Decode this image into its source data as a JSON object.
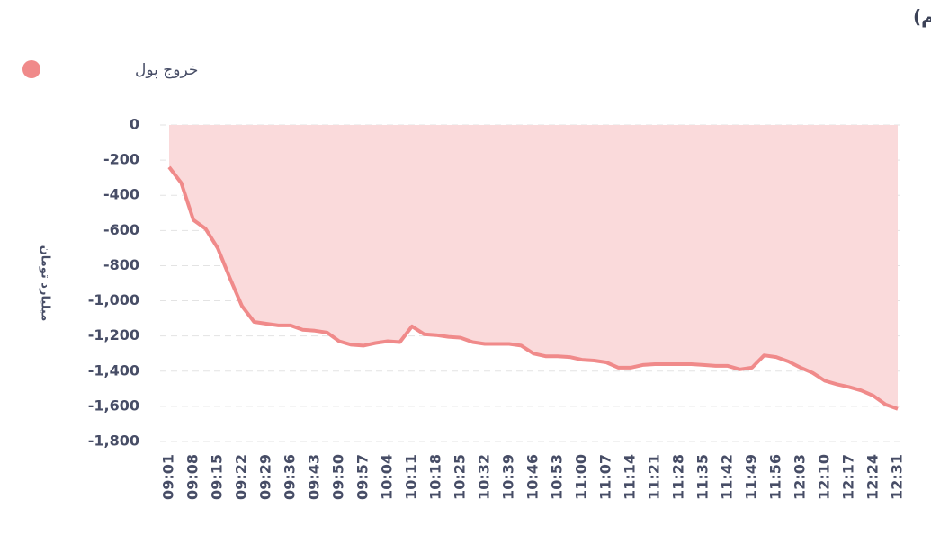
{
  "chart_data": {
    "type": "area",
    "title": "روند تغییر مالکیت حقیقی (سهام و حق تقدم)",
    "y_label": "میلیارد تومان",
    "legend_position": "top-left",
    "grid": true,
    "categories": [
      "09:01",
      null,
      "09:08",
      null,
      "09:15",
      null,
      "09:22",
      null,
      "09:29",
      null,
      "09:36",
      null,
      "09:43",
      null,
      "09:50",
      null,
      "09:57",
      null,
      "10:04",
      null,
      "10:11",
      null,
      "10:18",
      null,
      "10:25",
      null,
      "10:32",
      null,
      "10:39",
      null,
      "10:46",
      null,
      "10:53",
      null,
      "11:00",
      null,
      "11:07",
      null,
      "11:14",
      null,
      "11:21",
      null,
      "11:28",
      null,
      "11:35",
      null,
      "11:42",
      null,
      "11:49",
      null,
      "11:56",
      null,
      "12:03",
      null,
      "12:10",
      null,
      "12:17",
      null,
      "12:24",
      null,
      "12:31"
    ],
    "series": [
      {
        "name": "خروج پول",
        "color": "#f08a8a",
        "fill": "#fadadb",
        "values": [
          -240,
          -330,
          -540,
          -590,
          -700,
          -870,
          -1030,
          -1120,
          -1130,
          -1140,
          -1140,
          -1165,
          -1170,
          -1180,
          -1230,
          -1250,
          -1255,
          -1240,
          -1230,
          -1235,
          -1145,
          -1190,
          -1195,
          -1205,
          -1210,
          -1235,
          -1245,
          -1245,
          -1245,
          -1255,
          -1300,
          -1315,
          -1315,
          -1320,
          -1335,
          -1340,
          -1350,
          -1380,
          -1380,
          -1365,
          -1360,
          -1360,
          -1360,
          -1360,
          -1365,
          -1370,
          -1370,
          -1390,
          -1380,
          -1310,
          -1320,
          -1345,
          -1380,
          -1410,
          -1455,
          -1475,
          -1490,
          -1510,
          -1540,
          -1590,
          -1615
        ]
      }
    ],
    "ylim": [
      -1800,
      0
    ],
    "yticks": [
      0,
      -200,
      -400,
      -600,
      -800,
      {
        "value": -1000,
        "label": "-1,000"
      },
      {
        "value": -1200,
        "label": "-1,200"
      },
      {
        "value": -1400,
        "label": "-1,400"
      },
      {
        "value": -1600,
        "label": "-1,600"
      },
      {
        "value": -1800,
        "label": "-1,800"
      }
    ]
  }
}
